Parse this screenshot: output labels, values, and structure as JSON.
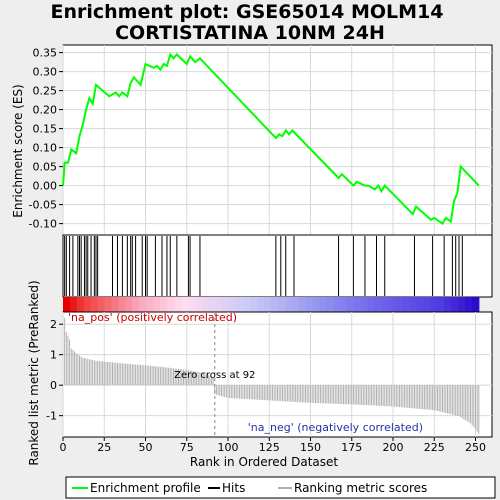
{
  "title_line1": "Enrichment plot: GSE65014 MOLM14",
  "title_line2": "CORTISTATINA 10NM 24H",
  "top_panel": {
    "ylabel": "Enrichment score (ES)",
    "yticks": [
      "0.35",
      "0.30",
      "0.25",
      "0.20",
      "0.15",
      "0.10",
      "0.05",
      "0.00",
      "-0.05",
      "-0.10"
    ]
  },
  "bottom_panel": {
    "ylabel": "Ranked list metric (PreRanked)",
    "yticks": [
      "2",
      "1",
      "0",
      "-1"
    ],
    "xticks": [
      "0",
      "25",
      "50",
      "75",
      "100",
      "125",
      "150",
      "175",
      "200",
      "225",
      "250"
    ],
    "xlabel": "Rank in Ordered Dataset",
    "pos_label": "'na_pos' (positively correlated)",
    "neg_label": "'na_neg' (negatively correlated)",
    "zero_cross_label": "Zero cross at 92"
  },
  "legend": {
    "enrichment_profile": "Enrichment profile",
    "hits": "Hits",
    "ranking_metric": "Ranking metric scores"
  },
  "colors": {
    "profile": "#00ff00",
    "hits": "#000000",
    "metric": "#b0b0b0",
    "pos_label": "#cc0000",
    "neg_label": "#2233aa"
  },
  "chart_data": {
    "type": "line",
    "title": "Enrichment plot: GSE65014 MOLM14 CORTISTATINA 10NM 24H",
    "xlabel": "Rank in Ordered Dataset",
    "ylabel": "Enrichment score (ES)",
    "xlim": [
      0,
      260
    ],
    "ylim": [
      -0.13,
      0.37
    ],
    "metric_ylim": [
      -1.7,
      2.4
    ],
    "zero_cross": 92,
    "n_ranks": 252,
    "enrichment_profile": [
      [
        0,
        0.0
      ],
      [
        1,
        0.06
      ],
      [
        3,
        0.06
      ],
      [
        5,
        0.095
      ],
      [
        8,
        0.085
      ],
      [
        10,
        0.13
      ],
      [
        12,
        0.16
      ],
      [
        14,
        0.2
      ],
      [
        16,
        0.23
      ],
      [
        18,
        0.215
      ],
      [
        20,
        0.265
      ],
      [
        28,
        0.235
      ],
      [
        32,
        0.245
      ],
      [
        34,
        0.235
      ],
      [
        36,
        0.245
      ],
      [
        39,
        0.235
      ],
      [
        41,
        0.27
      ],
      [
        43,
        0.285
      ],
      [
        47,
        0.265
      ],
      [
        50,
        0.32
      ],
      [
        55,
        0.31
      ],
      [
        57,
        0.315
      ],
      [
        59,
        0.305
      ],
      [
        61,
        0.32
      ],
      [
        63,
        0.315
      ],
      [
        65,
        0.345
      ],
      [
        67,
        0.335
      ],
      [
        69,
        0.345
      ],
      [
        75,
        0.32
      ],
      [
        77,
        0.34
      ],
      [
        80,
        0.325
      ],
      [
        83,
        0.335
      ],
      [
        129,
        0.125
      ],
      [
        131,
        0.135
      ],
      [
        133,
        0.13
      ],
      [
        135,
        0.145
      ],
      [
        137,
        0.135
      ],
      [
        139,
        0.145
      ],
      [
        167,
        0.02
      ],
      [
        169,
        0.03
      ],
      [
        176,
        0.0
      ],
      [
        178,
        0.01
      ],
      [
        183,
        0.0
      ],
      [
        185,
        0.0
      ],
      [
        189,
        -0.01
      ],
      [
        191,
        0.0
      ],
      [
        193,
        -0.015
      ],
      [
        195,
        0.0
      ],
      [
        212,
        -0.075
      ],
      [
        214,
        -0.055
      ],
      [
        223,
        -0.09
      ],
      [
        225,
        -0.085
      ],
      [
        230,
        -0.1
      ],
      [
        232,
        -0.085
      ],
      [
        235,
        -0.095
      ],
      [
        237,
        -0.04
      ],
      [
        239,
        -0.02
      ],
      [
        241,
        0.05
      ],
      [
        252,
        0.0
      ]
    ],
    "hits": [
      1,
      2,
      4,
      6,
      9,
      10,
      11,
      13,
      14,
      15,
      17,
      19,
      20,
      21,
      30,
      33,
      36,
      39,
      41,
      42,
      44,
      48,
      50,
      51,
      56,
      60,
      63,
      65,
      69,
      76,
      77,
      83,
      129,
      132,
      135,
      140,
      167,
      176,
      183,
      190,
      195,
      213,
      224,
      231,
      236,
      238,
      240,
      242
    ],
    "metric_samples": [
      [
        1,
        2.2
      ],
      [
        2,
        1.75
      ],
      [
        4,
        1.5
      ],
      [
        5,
        1.2
      ],
      [
        8,
        1.05
      ],
      [
        12,
        0.9
      ],
      [
        20,
        0.8
      ],
      [
        35,
        0.72
      ],
      [
        50,
        0.65
      ],
      [
        60,
        0.6
      ],
      [
        75,
        0.5
      ],
      [
        85,
        0.4
      ],
      [
        91,
        0.25
      ],
      [
        92,
        -0.3
      ],
      [
        100,
        -0.42
      ],
      [
        125,
        -0.5
      ],
      [
        150,
        -0.58
      ],
      [
        175,
        -0.63
      ],
      [
        200,
        -0.7
      ],
      [
        225,
        -0.82
      ],
      [
        240,
        -1.02
      ],
      [
        247,
        -1.25
      ],
      [
        250,
        -1.45
      ],
      [
        252,
        -1.6
      ]
    ]
  }
}
